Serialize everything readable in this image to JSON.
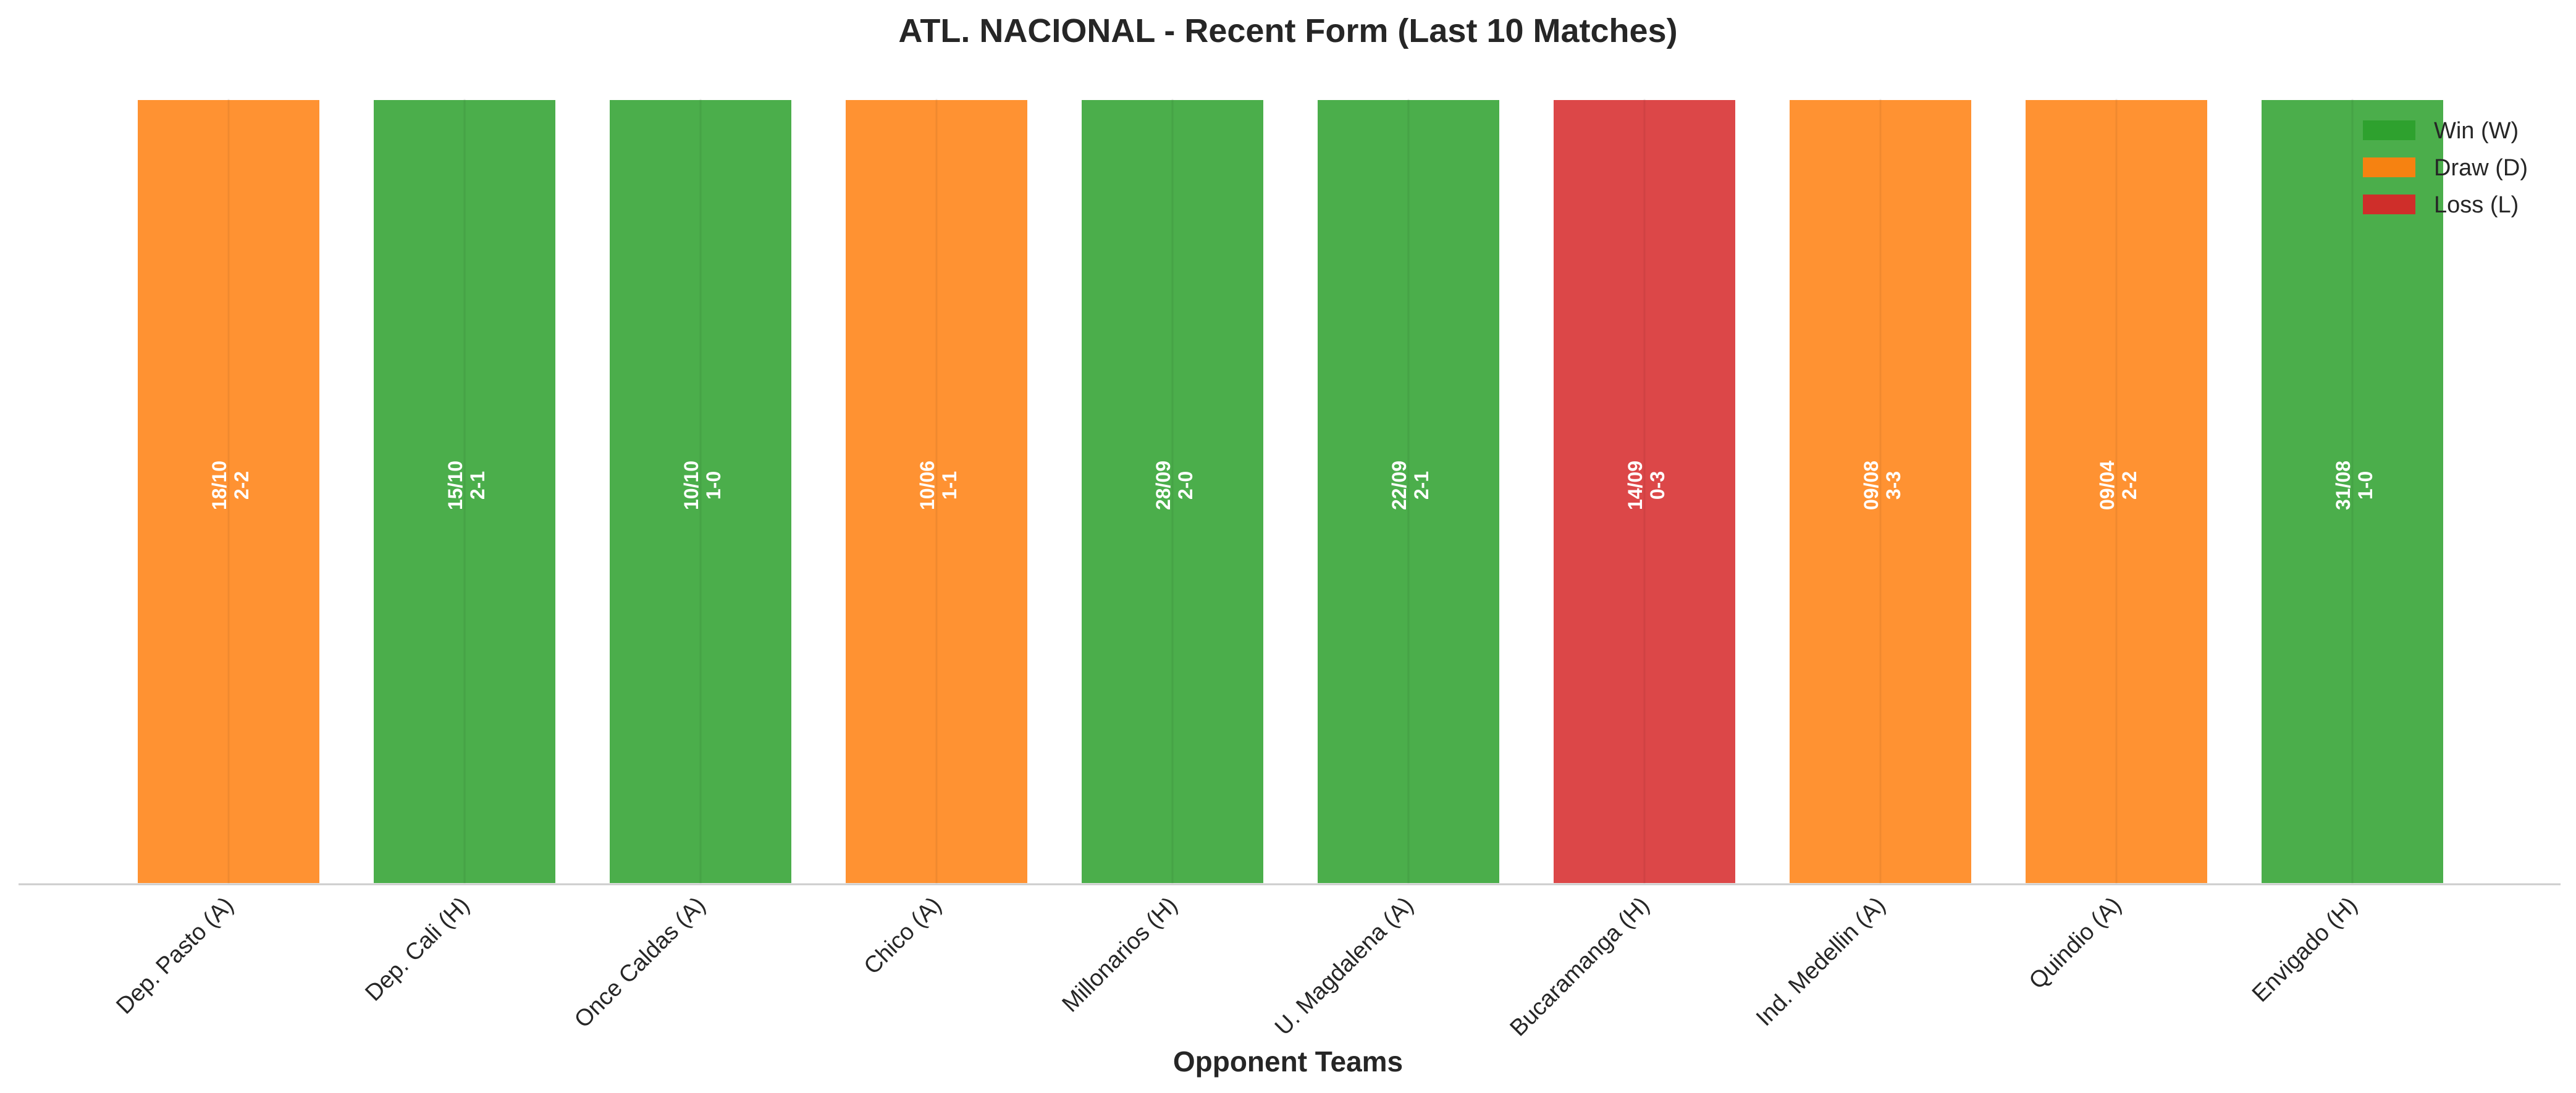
{
  "chart_data": {
    "type": "bar",
    "title": "ATL. NACIONAL - Recent Form (Last 10 Matches)",
    "xlabel": "Opponent Teams",
    "ylabel": "",
    "grid": false,
    "legend_position": "top-right",
    "categories": [
      "Dep. Pasto (A)",
      "Dep. Cali (H)",
      "Once Caldas (A)",
      "Chico (A)",
      "Millonarios (H)",
      "U. Magdalena (A)",
      "Bucaramanga (H)",
      "Ind. Medellin (A)",
      "Quindio (A)",
      "Envigado (H)"
    ],
    "values": [
      1,
      1,
      1,
      1,
      1,
      1,
      1,
      1,
      1,
      1
    ],
    "results": [
      "D",
      "W",
      "W",
      "D",
      "W",
      "W",
      "L",
      "D",
      "D",
      "W"
    ],
    "dates": [
      "18/10",
      "15/10",
      "10/10",
      "10/06",
      "28/09",
      "22/09",
      "14/09",
      "09/08",
      "09/04",
      "31/08"
    ],
    "scores": [
      "2-2",
      "2-1",
      "1-0",
      "1-1",
      "2-0",
      "2-1",
      "0-3",
      "3-3",
      "2-2",
      "1-0"
    ],
    "legend": [
      {
        "key": "W",
        "label": "Win (W)",
        "color": "#2ca02c"
      },
      {
        "key": "D",
        "label": "Draw (D)",
        "color": "#ff7f0e"
      },
      {
        "key": "L",
        "label": "Loss (L)",
        "color": "#d62728"
      }
    ]
  }
}
